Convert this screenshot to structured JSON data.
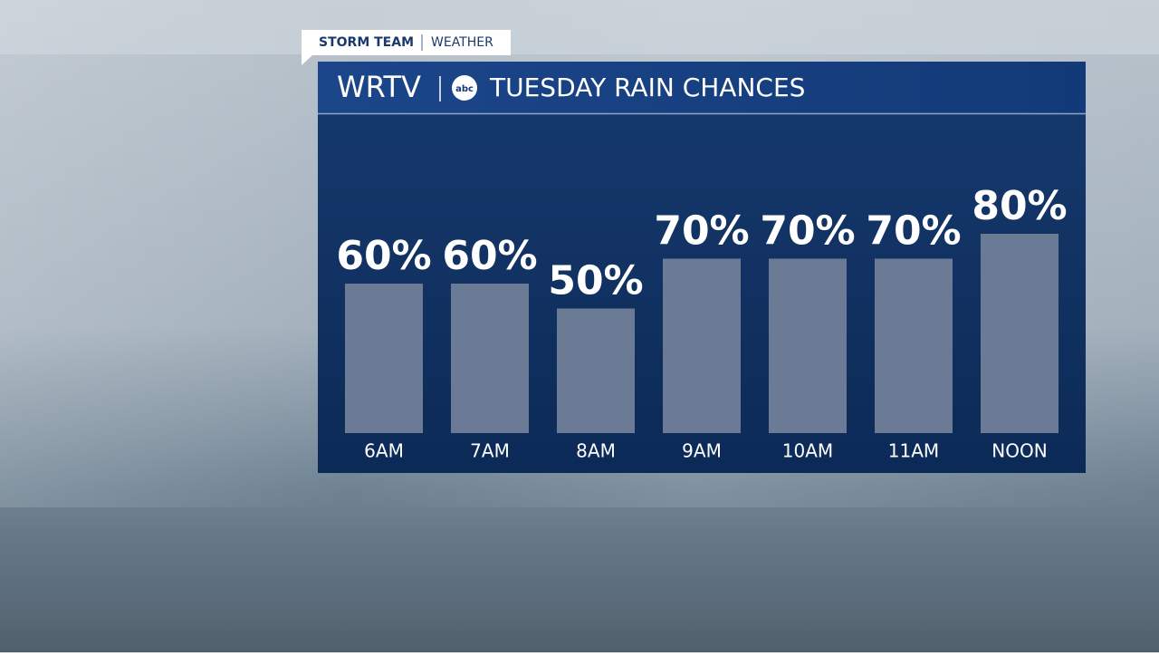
{
  "header": {
    "tag_left": "STORM TEAM",
    "tag_right": "WEATHER",
    "station": "WRTV",
    "network": "abc"
  },
  "chart_data": {
    "type": "bar",
    "title": "TUESDAY RAIN CHANCES",
    "categories": [
      "6AM",
      "7AM",
      "8AM",
      "9AM",
      "10AM",
      "11AM",
      "NOON"
    ],
    "values": [
      60,
      60,
      50,
      70,
      70,
      70,
      80
    ],
    "value_labels": [
      "60%",
      "60%",
      "50%",
      "70%",
      "70%",
      "70%",
      "80%"
    ],
    "color": "#6c7b95"
  }
}
